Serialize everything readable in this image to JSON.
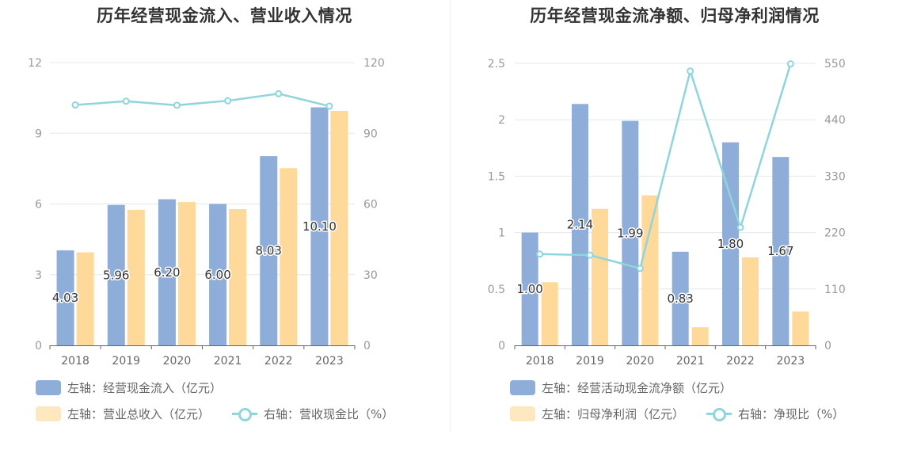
{
  "colors": {
    "blue": "#8eadd9",
    "orange": "#ffd99a",
    "teal": "#8fd5dc",
    "grid": "#e4e7ee"
  },
  "chart_data": [
    {
      "type": "bar",
      "title": "历年经营现金流入、营业收入情况",
      "categories": [
        "2018",
        "2019",
        "2020",
        "2021",
        "2022",
        "2023"
      ],
      "left_axis": {
        "min": 0,
        "max": 12,
        "ticks": [
          "0",
          "3",
          "6",
          "9",
          "12"
        ]
      },
      "right_axis": {
        "min": 0,
        "max": 120,
        "ticks": [
          "0",
          "30",
          "60",
          "90",
          "120"
        ]
      },
      "series": [
        {
          "name": "左轴：经营现金流入（亿元）",
          "type": "bar",
          "axis": "left",
          "color": "#8eadd9",
          "values": [
            4.03,
            5.96,
            6.2,
            6.0,
            8.03,
            10.1
          ],
          "labels": [
            "4.03",
            "5.96",
            "6.20",
            "6.00",
            "8.03",
            "10.10"
          ]
        },
        {
          "name": "左轴：营业总收入（亿元）",
          "type": "bar",
          "axis": "left",
          "color": "#ffd99a",
          "values": [
            3.95,
            5.75,
            6.08,
            5.78,
            7.52,
            9.95
          ]
        },
        {
          "name": "右轴：营收现金比（%）",
          "type": "line",
          "axis": "right",
          "color": "#8fd5dc",
          "values": [
            102,
            103.6,
            101.9,
            103.8,
            106.8,
            101.5
          ]
        }
      ],
      "legend": "bottom"
    },
    {
      "type": "bar",
      "title": "历年经营现金流净额、归母净利润情况",
      "categories": [
        "2018",
        "2019",
        "2020",
        "2021",
        "2022",
        "2023"
      ],
      "left_axis": {
        "min": 0,
        "max": 2.5,
        "ticks": [
          "0",
          "0.5",
          "1",
          "1.5",
          "2",
          "2.5"
        ]
      },
      "right_axis": {
        "min": 0,
        "max": 550,
        "ticks": [
          "0",
          "110",
          "220",
          "330",
          "440",
          "550"
        ]
      },
      "series": [
        {
          "name": "左轴：经营活动现金流净额（亿元）",
          "type": "bar",
          "axis": "left",
          "color": "#8eadd9",
          "values": [
            1.0,
            2.14,
            1.99,
            0.83,
            1.8,
            1.67
          ],
          "labels": [
            "1.00",
            "2.14",
            "1.99",
            "0.83",
            "1.80",
            "1.67"
          ]
        },
        {
          "name": "左轴：归母净利润（亿元）",
          "type": "bar",
          "axis": "left",
          "color": "#ffd99a",
          "values": [
            0.56,
            1.21,
            1.33,
            0.16,
            0.78,
            0.3
          ]
        },
        {
          "name": "右轴：净现比（%）",
          "type": "line",
          "axis": "right",
          "color": "#8fd5dc",
          "values": [
            178,
            176,
            150,
            535,
            230,
            549
          ]
        }
      ],
      "legend": "bottom"
    }
  ]
}
